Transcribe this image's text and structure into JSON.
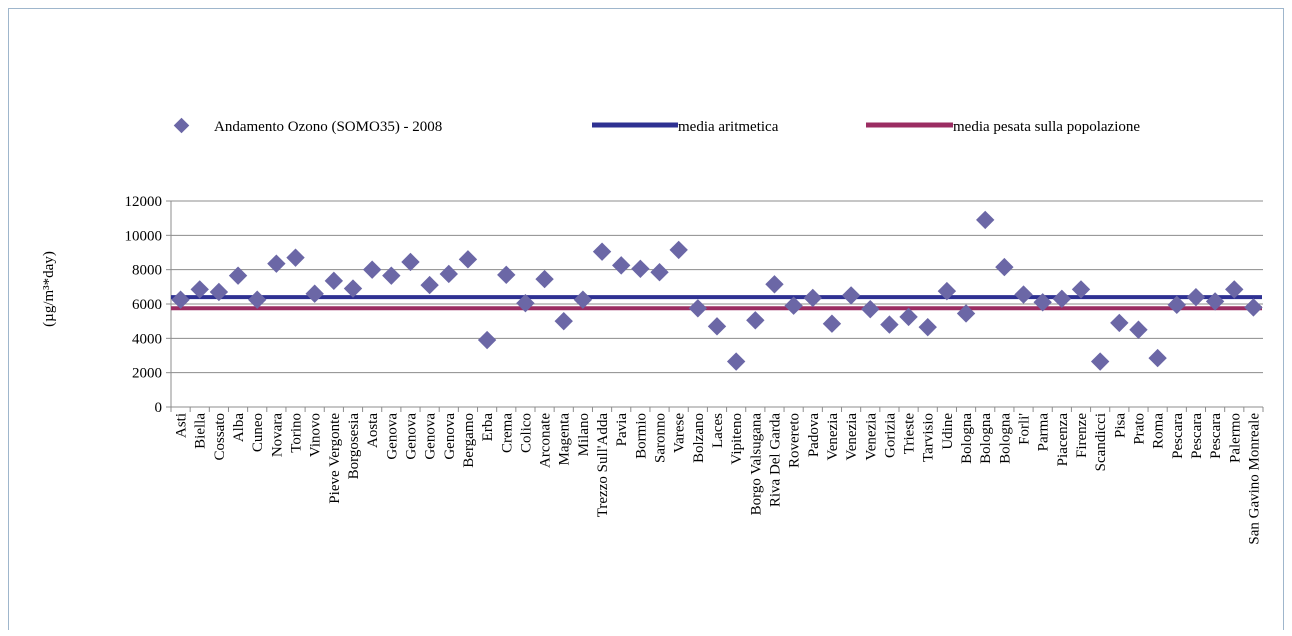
{
  "chart_data": {
    "type": "scatter",
    "title": "",
    "xlabel": "",
    "ylabel": "(µg/m³*day)",
    "ylim": [
      0,
      12000
    ],
    "yticks": [
      0,
      2000,
      4000,
      6000,
      8000,
      10000,
      12000
    ],
    "grid": "horizontal",
    "legend_position": "top",
    "categories": [
      "Asti",
      "Biella",
      "Cossato",
      "Alba",
      "Cuneo",
      "Novara",
      "Torino",
      "Vinovo",
      "Pieve Vergonte",
      "Borgosesia",
      "Aosta",
      "Genova",
      "Genova",
      "Genova",
      "Genova",
      "Bergamo",
      "Erba",
      "Crema",
      "Colico",
      "Arconate",
      "Magenta",
      "Milano",
      "Trezzo Sull'Adda",
      "Pavia",
      "Bormio",
      "Saronno",
      "Varese",
      "Bolzano",
      "Laces",
      "Vipiteno",
      "Borgo Valsugana",
      "Riva Del Garda",
      "Rovereto",
      "Padova",
      "Venezia",
      "Venezia",
      "Venezia",
      "Gorizia",
      "Trieste",
      "Tarvisio",
      "Udine",
      "Bologna",
      "Bologna",
      "Bologna",
      "Forli'",
      "Parma",
      "Piacenza",
      "Firenze",
      "Scandicci",
      "Pisa",
      "Prato",
      "Roma",
      "Pescara",
      "Pescara",
      "Pescara",
      "Palermo",
      "San Gavino Monreale"
    ],
    "series": [
      {
        "name": "Andamento Ozono (SOMO35)  - 2008",
        "kind": "markers",
        "color": "#6b67a6",
        "values": [
          6250,
          6850,
          6700,
          7650,
          6250,
          8350,
          8700,
          6600,
          7350,
          6900,
          8000,
          7650,
          8450,
          7100,
          7750,
          8600,
          3900,
          7700,
          6050,
          7450,
          5000,
          6250,
          9050,
          8250,
          8050,
          7850,
          9150,
          5750,
          4700,
          2650,
          5050,
          7150,
          5900,
          6350,
          4850,
          6500,
          5700,
          4800,
          5250,
          4650,
          6750,
          5450,
          10900,
          8150,
          6550,
          6100,
          6300,
          6850,
          2650,
          4900,
          4500,
          2850,
          5950,
          6400,
          6150,
          6850,
          5800
        ]
      },
      {
        "name": "media aritmetica",
        "kind": "line",
        "color": "#2e3192",
        "value": 6400
      },
      {
        "name": "media pesata sulla popolazione",
        "kind": "line",
        "color": "#9b2d62",
        "value": 5750
      }
    ]
  }
}
